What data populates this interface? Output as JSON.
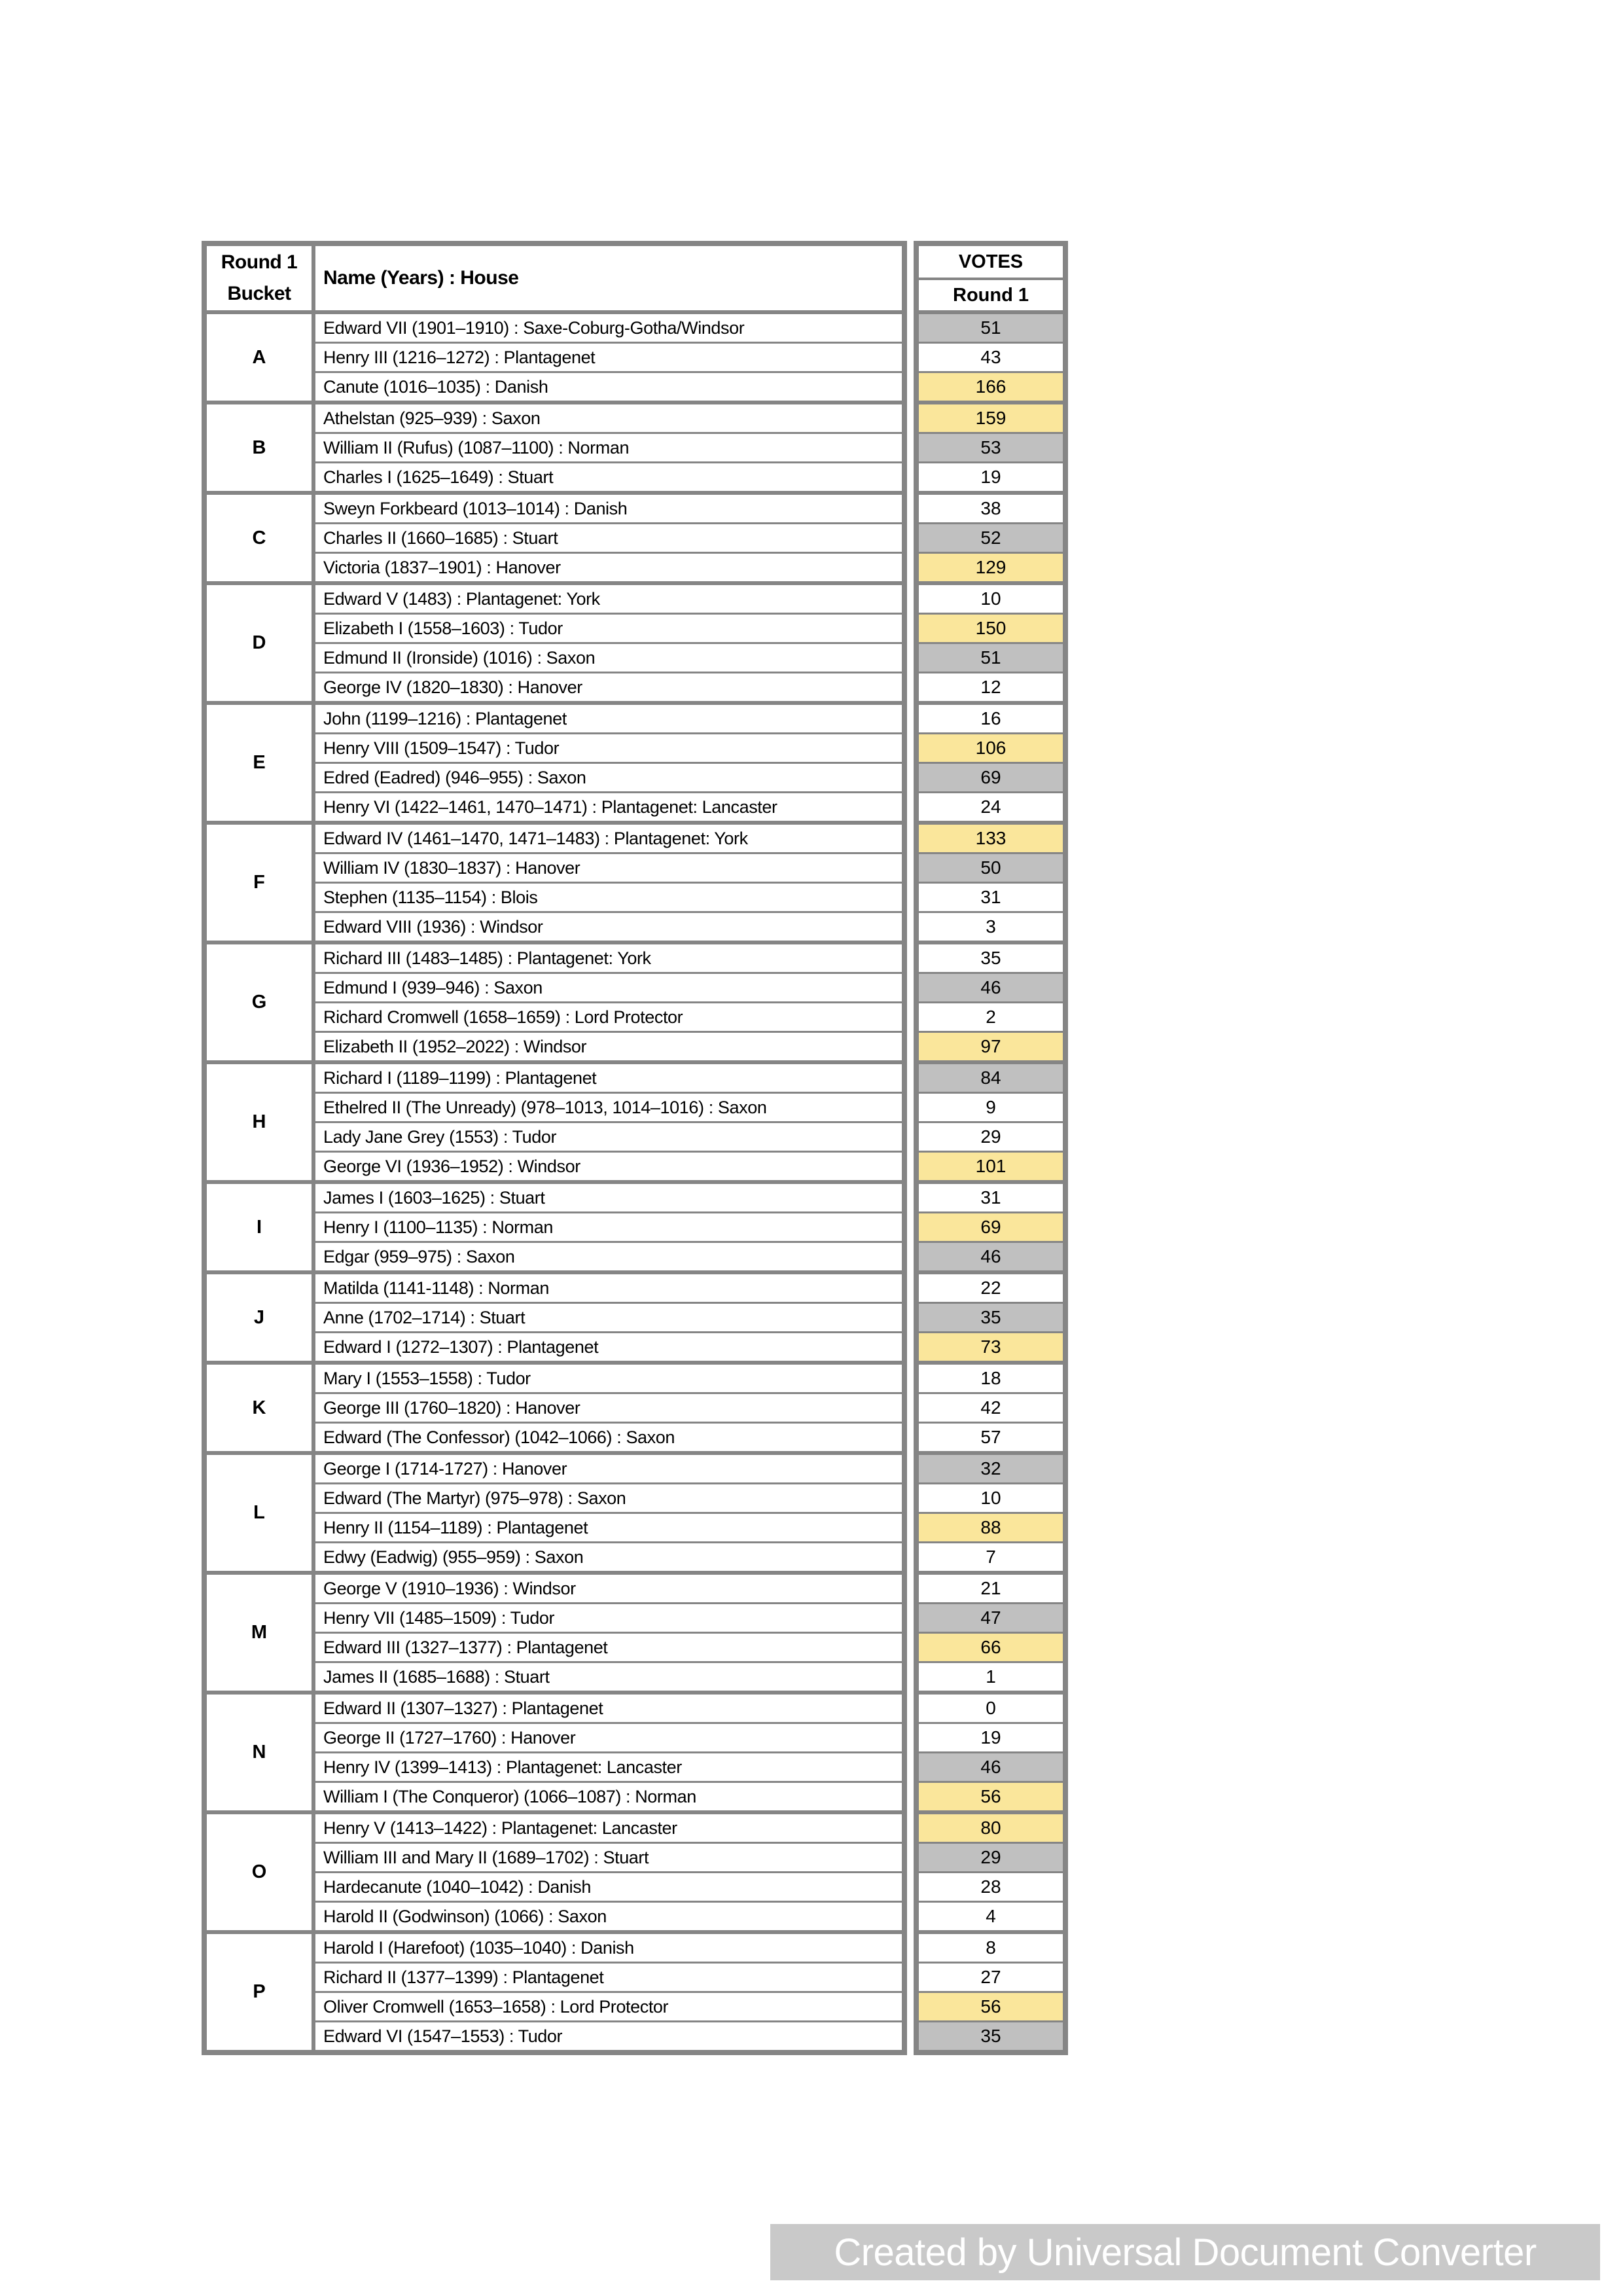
{
  "header": {
    "bucket_label_line1": "Round 1",
    "bucket_label_line2": "Bucket",
    "name_label": "Name (Years) : House",
    "votes_label": "VOTES",
    "votes_round_label": "Round 1"
  },
  "colors": {
    "highlight_yellow": "#FAE69B",
    "highlight_gray": "#C0C0C0",
    "table_border": "#858585",
    "watermark_bar": "#C9C9C9",
    "watermark_text": "#FFFFFF"
  },
  "buckets": [
    {
      "label": "A",
      "rows": [
        {
          "name": "Edward VII (1901–1910) : Saxe-Coburg-Gotha/Windsor",
          "votes": "51",
          "highlight": "gray"
        },
        {
          "name": "Henry III (1216–1272) : Plantagenet",
          "votes": "43",
          "highlight": "none"
        },
        {
          "name": "Canute (1016–1035) : Danish",
          "votes": "166",
          "highlight": "yellow"
        }
      ]
    },
    {
      "label": "B",
      "rows": [
        {
          "name": "Athelstan (925–939) : Saxon",
          "votes": "159",
          "highlight": "yellow"
        },
        {
          "name": "William II (Rufus) (1087–1100) : Norman",
          "votes": "53",
          "highlight": "gray"
        },
        {
          "name": "Charles I (1625–1649) : Stuart",
          "votes": "19",
          "highlight": "none"
        }
      ]
    },
    {
      "label": "C",
      "rows": [
        {
          "name": "Sweyn Forkbeard (1013–1014) : Danish",
          "votes": "38",
          "highlight": "none"
        },
        {
          "name": "Charles II (1660–1685) : Stuart",
          "votes": "52",
          "highlight": "gray"
        },
        {
          "name": "Victoria (1837–1901) : Hanover",
          "votes": "129",
          "highlight": "yellow"
        }
      ]
    },
    {
      "label": "D",
      "rows": [
        {
          "name": "Edward V (1483) : Plantagenet: York",
          "votes": "10",
          "highlight": "none"
        },
        {
          "name": "Elizabeth I (1558–1603) : Tudor",
          "votes": "150",
          "highlight": "yellow"
        },
        {
          "name": "Edmund II (Ironside) (1016) : Saxon",
          "votes": "51",
          "highlight": "gray"
        },
        {
          "name": "George IV (1820–1830) : Hanover",
          "votes": "12",
          "highlight": "none"
        }
      ]
    },
    {
      "label": "E",
      "rows": [
        {
          "name": "John (1199–1216) : Plantagenet",
          "votes": "16",
          "highlight": "none"
        },
        {
          "name": "Henry VIII (1509–1547) : Tudor",
          "votes": "106",
          "highlight": "yellow"
        },
        {
          "name": "Edred (Eadred) (946–955) : Saxon",
          "votes": "69",
          "highlight": "gray"
        },
        {
          "name": "Henry VI (1422–1461, 1470–1471) : Plantagenet: Lancaster",
          "votes": "24",
          "highlight": "none"
        }
      ]
    },
    {
      "label": "F",
      "rows": [
        {
          "name": "Edward IV (1461–1470, 1471–1483) : Plantagenet: York",
          "votes": "133",
          "highlight": "yellow"
        },
        {
          "name": "William IV (1830–1837) : Hanover",
          "votes": "50",
          "highlight": "gray"
        },
        {
          "name": "Stephen (1135–1154) : Blois",
          "votes": "31",
          "highlight": "none"
        },
        {
          "name": "Edward VIII (1936) : Windsor",
          "votes": "3",
          "highlight": "none"
        }
      ]
    },
    {
      "label": "G",
      "rows": [
        {
          "name": "Richard III (1483–1485) : Plantagenet: York",
          "votes": "35",
          "highlight": "none"
        },
        {
          "name": "Edmund I (939–946) : Saxon",
          "votes": "46",
          "highlight": "gray"
        },
        {
          "name": "Richard Cromwell (1658–1659) : Lord Protector",
          "votes": "2",
          "highlight": "none"
        },
        {
          "name": "Elizabeth II (1952–2022) : Windsor",
          "votes": "97",
          "highlight": "yellow"
        }
      ]
    },
    {
      "label": "H",
      "rows": [
        {
          "name": "Richard I (1189–1199) : Plantagenet",
          "votes": "84",
          "highlight": "gray"
        },
        {
          "name": "Ethelred II (The Unready) (978–1013, 1014–1016) : Saxon",
          "votes": "9",
          "highlight": "none"
        },
        {
          "name": "Lady Jane Grey (1553) : Tudor",
          "votes": "29",
          "highlight": "none"
        },
        {
          "name": "George VI (1936–1952) : Windsor",
          "votes": "101",
          "highlight": "yellow"
        }
      ]
    },
    {
      "label": "I",
      "rows": [
        {
          "name": "James I (1603–1625) : Stuart",
          "votes": "31",
          "highlight": "none"
        },
        {
          "name": "Henry I (1100–1135) : Norman",
          "votes": "69",
          "highlight": "yellow"
        },
        {
          "name": "Edgar (959–975) : Saxon",
          "votes": "46",
          "highlight": "gray"
        }
      ]
    },
    {
      "label": "J",
      "rows": [
        {
          "name": "Matilda (1141-1148) : Norman",
          "votes": "22",
          "highlight": "none"
        },
        {
          "name": "Anne (1702–1714) : Stuart",
          "votes": "35",
          "highlight": "gray"
        },
        {
          "name": "Edward I (1272–1307) : Plantagenet",
          "votes": "73",
          "highlight": "yellow"
        }
      ]
    },
    {
      "label": "K",
      "rows": [
        {
          "name": "Mary I (1553–1558) : Tudor",
          "votes": "18",
          "highlight": "none"
        },
        {
          "name": "George III (1760–1820) : Hanover",
          "votes": "42",
          "highlight": "none"
        },
        {
          "name": "Edward (The Confessor) (1042–1066) : Saxon",
          "votes": "57",
          "highlight": "none"
        }
      ]
    },
    {
      "label": "L",
      "rows": [
        {
          "name": "George I (1714-1727) : Hanover",
          "votes": "32",
          "highlight": "gray"
        },
        {
          "name": "Edward (The Martyr) (975–978) : Saxon",
          "votes": "10",
          "highlight": "none"
        },
        {
          "name": "Henry II (1154–1189) : Plantagenet",
          "votes": "88",
          "highlight": "yellow"
        },
        {
          "name": "Edwy (Eadwig) (955–959) : Saxon",
          "votes": "7",
          "highlight": "none"
        }
      ]
    },
    {
      "label": "M",
      "rows": [
        {
          "name": "George V (1910–1936) : Windsor",
          "votes": "21",
          "highlight": "none"
        },
        {
          "name": "Henry VII (1485–1509) : Tudor",
          "votes": "47",
          "highlight": "gray"
        },
        {
          "name": "Edward III (1327–1377) : Plantagenet",
          "votes": "66",
          "highlight": "yellow"
        },
        {
          "name": "James II (1685–1688) : Stuart",
          "votes": "1",
          "highlight": "none"
        }
      ]
    },
    {
      "label": "N",
      "rows": [
        {
          "name": "Edward II (1307–1327) : Plantagenet",
          "votes": "0",
          "highlight": "none"
        },
        {
          "name": "George II (1727–1760) : Hanover",
          "votes": "19",
          "highlight": "none"
        },
        {
          "name": "Henry IV (1399–1413) : Plantagenet: Lancaster",
          "votes": "46",
          "highlight": "gray"
        },
        {
          "name": "William I (The Conqueror) (1066–1087) : Norman",
          "votes": "56",
          "highlight": "yellow"
        }
      ]
    },
    {
      "label": "O",
      "rows": [
        {
          "name": "Henry V (1413–1422) : Plantagenet: Lancaster",
          "votes": "80",
          "highlight": "yellow"
        },
        {
          "name": "William III and Mary II (1689–1702) : Stuart",
          "votes": "29",
          "highlight": "gray"
        },
        {
          "name": "Hardecanute (1040–1042) : Danish",
          "votes": "28",
          "highlight": "none"
        },
        {
          "name": "Harold II (Godwinson) (1066) : Saxon",
          "votes": "4",
          "highlight": "none"
        }
      ]
    },
    {
      "label": "P",
      "rows": [
        {
          "name": "Harold I (Harefoot) (1035–1040) : Danish",
          "votes": "8",
          "highlight": "none"
        },
        {
          "name": "Richard II (1377–1399) : Plantagenet",
          "votes": "27",
          "highlight": "none"
        },
        {
          "name": "Oliver Cromwell (1653–1658) : Lord Protector",
          "votes": "56",
          "highlight": "yellow"
        },
        {
          "name": "Edward VI (1547–1553) : Tudor",
          "votes": "35",
          "highlight": "gray"
        }
      ]
    }
  ],
  "watermark": {
    "text": "Created by Universal Document Converter"
  }
}
